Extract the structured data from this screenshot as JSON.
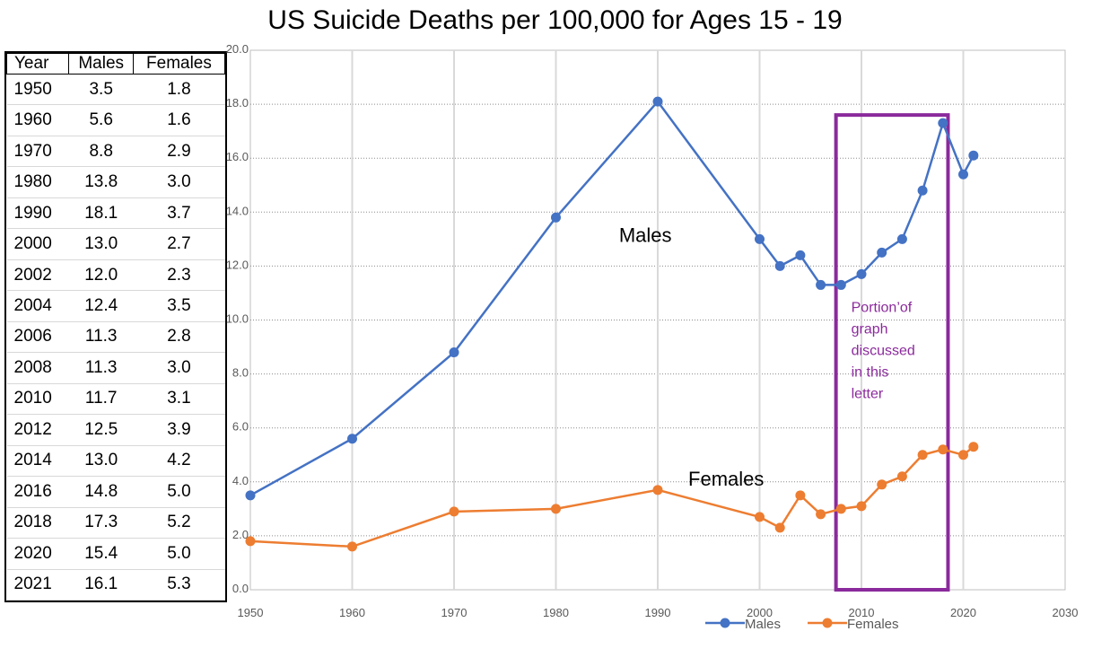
{
  "title": "US Suicide Deaths per 100,000 for Ages 15 - 19",
  "table": {
    "headers": [
      "Year",
      "Males",
      "Females"
    ],
    "rows": [
      [
        "1950",
        "3.5",
        "1.8"
      ],
      [
        "1960",
        "5.6",
        "1.6"
      ],
      [
        "1970",
        "8.8",
        "2.9"
      ],
      [
        "1980",
        "13.8",
        "3.0"
      ],
      [
        "1990",
        "18.1",
        "3.7"
      ],
      [
        "2000",
        "13.0",
        "2.7"
      ],
      [
        "2002",
        "12.0",
        "2.3"
      ],
      [
        "2004",
        "12.4",
        "3.5"
      ],
      [
        "2006",
        "11.3",
        "2.8"
      ],
      [
        "2008",
        "11.3",
        "3.0"
      ],
      [
        "2010",
        "11.7",
        "3.1"
      ],
      [
        "2012",
        "12.5",
        "3.9"
      ],
      [
        "2014",
        "13.0",
        "4.2"
      ],
      [
        "2016",
        "14.8",
        "5.0"
      ],
      [
        "2018",
        "17.3",
        "5.2"
      ],
      [
        "2020",
        "15.4",
        "5.0"
      ],
      [
        "2021",
        "16.1",
        "5.3"
      ]
    ]
  },
  "chart_data": {
    "type": "line",
    "title": "US Suicide Deaths per 100,000 for Ages 15 - 19",
    "x": [
      1950,
      1960,
      1970,
      1980,
      1990,
      2000,
      2002,
      2004,
      2006,
      2008,
      2010,
      2012,
      2014,
      2016,
      2018,
      2020,
      2021
    ],
    "series": [
      {
        "name": "Males",
        "color": "#4472C4",
        "values": [
          3.5,
          5.6,
          8.8,
          13.8,
          18.1,
          13.0,
          12.0,
          12.4,
          11.3,
          11.3,
          11.7,
          12.5,
          13.0,
          14.8,
          17.3,
          15.4,
          16.1
        ]
      },
      {
        "name": "Females",
        "color": "#ED7D31",
        "values": [
          1.8,
          1.6,
          2.9,
          3.0,
          3.7,
          2.7,
          2.3,
          3.5,
          2.8,
          3.0,
          3.1,
          3.9,
          4.2,
          5.0,
          5.2,
          5.0,
          5.3
        ]
      }
    ],
    "xlim": [
      1950,
      2030
    ],
    "ylim": [
      0,
      20
    ],
    "x_ticks": [
      "1950",
      "1960",
      "1970",
      "1980",
      "1990",
      "2000",
      "2010",
      "2020",
      "2030"
    ],
    "y_ticks": [
      "0.0",
      "2.0",
      "4.0",
      "6.0",
      "8.0",
      "10.0",
      "12.0",
      "14.0",
      "16.0",
      "18.0",
      "20.0"
    ],
    "legend": [
      "Males",
      "Females"
    ],
    "legend_position": "bottom",
    "annotations": {
      "males_label": "Males",
      "females_label": "Females",
      "highlight_text": [
        "Portion’of",
        "graph",
        "discussed",
        "in this",
        "letter"
      ],
      "highlight_range": [
        2007.5,
        2018.5
      ],
      "highlight_color": "#8B2A9C"
    }
  }
}
